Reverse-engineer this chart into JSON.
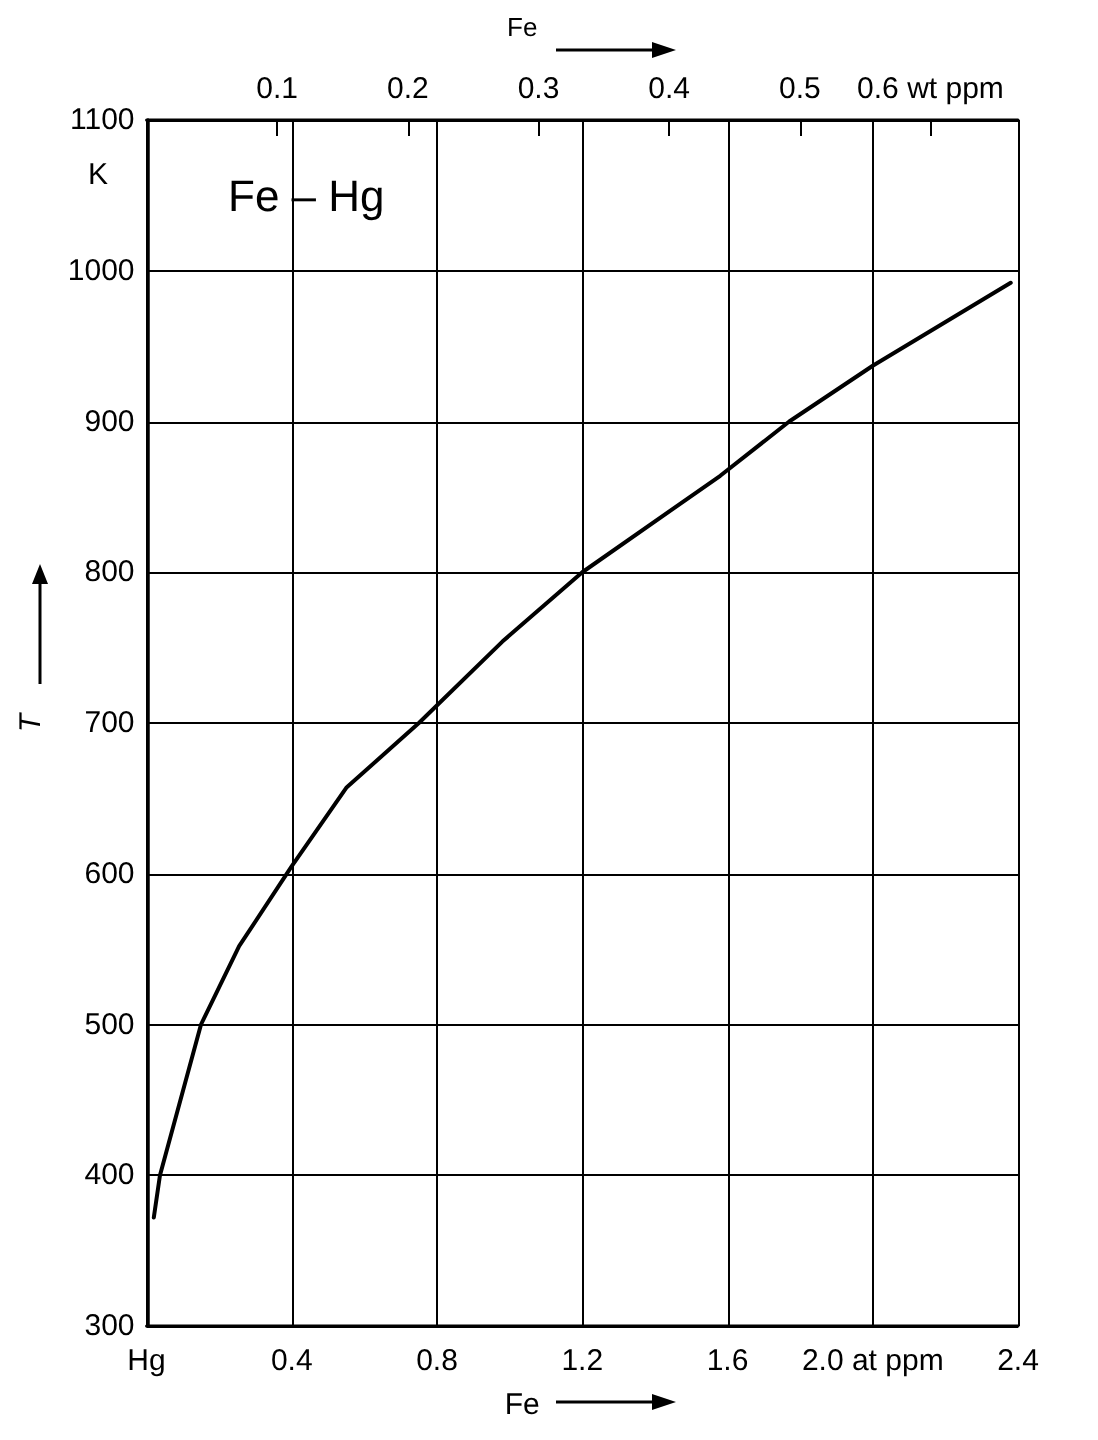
{
  "chart_data": {
    "type": "line",
    "xlabel": "Fe",
    "x2label": "Fe",
    "ylabel": "T",
    "annotations": [
      "Fe – Hg",
      "K"
    ],
    "x": [
      0.02,
      0.037,
      0.15,
      0.255,
      0.4,
      0.55,
      0.75,
      0.98,
      1.2,
      1.58,
      1.77,
      2.0,
      2.38
    ],
    "series": [
      {
        "color": "#000000",
        "values": [
          372,
          400,
          500,
          552,
          605,
          657,
          700,
          754,
          800,
          864,
          900,
          937,
          992
        ]
      }
    ],
    "xlim": [
      0,
      2.4
    ],
    "xticks": [
      {
        "value": 0,
        "label": "Hg"
      },
      0.4,
      0.8,
      1.2,
      1.6,
      {
        "value": 2.0,
        "label": "2.0 at ppm"
      },
      2.4
    ],
    "x2lim": [
      0,
      0.667
    ],
    "x2ticks": [
      0.1,
      0.2,
      0.3,
      0.4,
      0.5,
      {
        "value": 0.6,
        "label": "0.6 wt ppm"
      }
    ],
    "ylim": [
      300,
      1100
    ],
    "yticks": [
      300,
      400,
      500,
      600,
      700,
      800,
      900,
      1000,
      1100
    ],
    "grid": true,
    "marker": "none",
    "line_style": "solid"
  }
}
